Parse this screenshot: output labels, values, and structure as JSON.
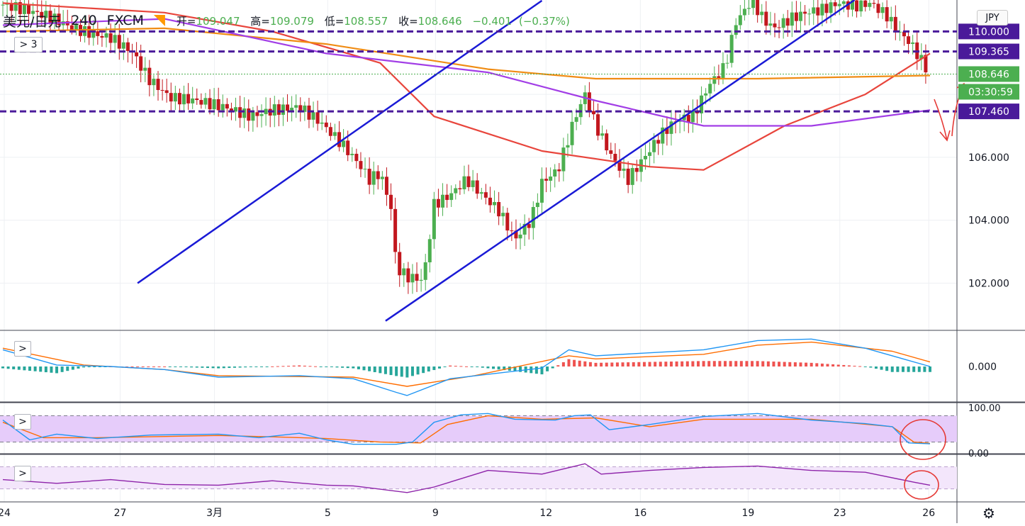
{
  "header": {
    "symbol": "美元/日元",
    "timeframe": "240",
    "source": "FXCM",
    "open_label": "开=",
    "open": "109.047",
    "high_label": "高=",
    "high": "109.079",
    "low_label": "低=",
    "low": "108.557",
    "close_label": "收=",
    "close": "108.646",
    "change": "−0.401",
    "change_pct": "(−0.37%)",
    "legend_button": "3"
  },
  "currency_badge": "JPY",
  "colors": {
    "up": "#4caf50",
    "down": "#c2171e",
    "ma_red": "#e8453c",
    "ma_orange": "#f08c14",
    "ma_purple": "#a23ee6",
    "channel": "#1a1ad6",
    "dash": "#4a1a9a",
    "macd_blue": "#2196f3",
    "macd_orange": "#ff6d00",
    "rsi_band": "#e6ccfa"
  },
  "price_labels": [
    {
      "text": "110.000",
      "bg": "#4a1a9a"
    },
    {
      "text": "109.365",
      "bg": "#4a1a9a"
    },
    {
      "text": "108.646",
      "bg": "#4caf50"
    },
    {
      "text": "03:30:59",
      "bg": "#4caf50"
    },
    {
      "text": "107.460",
      "bg": "#4a1a9a"
    }
  ],
  "chart_data": {
    "type": "candlestick",
    "y_ticks": [
      "102.000",
      "104.000",
      "106.000"
    ],
    "ylim": [
      100.5,
      111.0
    ],
    "x_tick_labels": [
      "24",
      "27",
      "3月",
      "5",
      "9",
      "12",
      "16",
      "19",
      "23",
      "26"
    ],
    "last_price": 108.646,
    "horizontal_levels": [
      110.0,
      109.365,
      107.46
    ],
    "close_path": [
      [
        0,
        110.85
      ],
      [
        8,
        110.7
      ],
      [
        18,
        110.45
      ],
      [
        26,
        110.1
      ],
      [
        34,
        109.9
      ],
      [
        40,
        109.8
      ],
      [
        48,
        109.35
      ],
      [
        54,
        108.5
      ],
      [
        62,
        107.9
      ],
      [
        72,
        107.8
      ],
      [
        82,
        107.6
      ],
      [
        92,
        107.3
      ],
      [
        100,
        107.5
      ],
      [
        110,
        107.6
      ],
      [
        118,
        107.1
      ],
      [
        126,
        106.4
      ],
      [
        132,
        105.8
      ],
      [
        136,
        105.3
      ],
      [
        140,
        105.5
      ],
      [
        144,
        104.4
      ],
      [
        146,
        102.5
      ],
      [
        150,
        102.2
      ],
      [
        156,
        102.1
      ],
      [
        160,
        104.5
      ],
      [
        166,
        104.8
      ],
      [
        172,
        105.3
      ],
      [
        178,
        104.8
      ],
      [
        184,
        104.3
      ],
      [
        190,
        103.4
      ],
      [
        196,
        104.0
      ],
      [
        200,
        105.2
      ],
      [
        206,
        105.6
      ],
      [
        212,
        107.2
      ],
      [
        216,
        108.0
      ],
      [
        220,
        107.0
      ],
      [
        226,
        106.0
      ],
      [
        232,
        105.3
      ],
      [
        238,
        106.0
      ],
      [
        244,
        106.7
      ],
      [
        250,
        107.2
      ],
      [
        256,
        107.3
      ],
      [
        262,
        108.3
      ],
      [
        268,
        108.9
      ],
      [
        272,
        110.3
      ],
      [
        278,
        111.0
      ],
      [
        282,
        110.4
      ],
      [
        286,
        110.1
      ],
      [
        292,
        110.4
      ],
      [
        298,
        110.6
      ],
      [
        304,
        110.7
      ],
      [
        310,
        110.9
      ],
      [
        316,
        110.8
      ],
      [
        322,
        110.9
      ],
      [
        328,
        110.5
      ],
      [
        332,
        110.0
      ],
      [
        336,
        109.7
      ],
      [
        340,
        109.2
      ],
      [
        344,
        108.6
      ]
    ],
    "moving_averages": [
      {
        "color": "#e8453c",
        "points": [
          [
            0,
            110.9
          ],
          [
            60,
            110.6
          ],
          [
            100,
            110.0
          ],
          [
            140,
            109.0
          ],
          [
            160,
            107.3
          ],
          [
            200,
            106.2
          ],
          [
            240,
            105.7
          ],
          [
            260,
            105.6
          ],
          [
            290,
            107.0
          ],
          [
            320,
            108.0
          ],
          [
            344,
            109.3
          ]
        ]
      },
      {
        "color": "#f08c14",
        "points": [
          [
            0,
            110.0
          ],
          [
            60,
            110.1
          ],
          [
            120,
            109.6
          ],
          [
            180,
            108.8
          ],
          [
            220,
            108.5
          ],
          [
            280,
            108.5
          ],
          [
            344,
            108.6
          ]
        ]
      },
      {
        "color": "#a23ee6",
        "points": [
          [
            0,
            110.2
          ],
          [
            60,
            110.4
          ],
          [
            120,
            109.3
          ],
          [
            180,
            108.7
          ],
          [
            220,
            107.8
          ],
          [
            260,
            107.0
          ],
          [
            300,
            107.0
          ],
          [
            344,
            107.5
          ]
        ]
      }
    ],
    "channel_lines": [
      [
        [
          50,
          102.0
        ],
        [
          200,
          110.98
        ]
      ],
      [
        [
          142,
          100.8
        ],
        [
          316,
          111.0
        ]
      ]
    ],
    "macd": {
      "zero_label": "0.000",
      "macd_path": [
        [
          0,
          0.55
        ],
        [
          20,
          0.05
        ],
        [
          40,
          0.0
        ],
        [
          60,
          -0.1
        ],
        [
          80,
          -0.35
        ],
        [
          110,
          -0.3
        ],
        [
          130,
          -0.4
        ],
        [
          146,
          -0.85
        ],
        [
          150,
          -0.95
        ],
        [
          166,
          -0.4
        ],
        [
          200,
          -0.05
        ],
        [
          210,
          0.55
        ],
        [
          220,
          0.35
        ],
        [
          260,
          0.55
        ],
        [
          280,
          0.85
        ],
        [
          300,
          0.9
        ],
        [
          320,
          0.6
        ],
        [
          344,
          0.0
        ]
      ],
      "signal_path": [
        [
          0,
          0.6
        ],
        [
          30,
          0.05
        ],
        [
          60,
          -0.1
        ],
        [
          80,
          -0.3
        ],
        [
          130,
          -0.35
        ],
        [
          150,
          -0.65
        ],
        [
          175,
          -0.3
        ],
        [
          210,
          0.35
        ],
        [
          220,
          0.25
        ],
        [
          260,
          0.4
        ],
        [
          280,
          0.7
        ],
        [
          300,
          0.8
        ],
        [
          330,
          0.5
        ],
        [
          344,
          0.15
        ]
      ],
      "ylim": [
        -1.0,
        1.0
      ]
    },
    "rsi": {
      "top_label": "100.00",
      "bottom_label": "0.00",
      "band": [
        20,
        80
      ],
      "rsi_path": [
        [
          0,
          70
        ],
        [
          10,
          25
        ],
        [
          20,
          38
        ],
        [
          35,
          28
        ],
        [
          55,
          36
        ],
        [
          80,
          38
        ],
        [
          95,
          30
        ],
        [
          110,
          40
        ],
        [
          120,
          25
        ],
        [
          130,
          15
        ],
        [
          146,
          15
        ],
        [
          152,
          20
        ],
        [
          160,
          65
        ],
        [
          170,
          82
        ],
        [
          180,
          85
        ],
        [
          190,
          72
        ],
        [
          205,
          70
        ],
        [
          212,
          80
        ],
        [
          218,
          82
        ],
        [
          225,
          48
        ],
        [
          240,
          60
        ],
        [
          260,
          78
        ],
        [
          280,
          85
        ],
        [
          300,
          70
        ],
        [
          320,
          62
        ],
        [
          330,
          55
        ],
        [
          336,
          18
        ],
        [
          344,
          16
        ]
      ],
      "signal_path": [
        [
          0,
          65
        ],
        [
          15,
          30
        ],
        [
          35,
          30
        ],
        [
          80,
          35
        ],
        [
          100,
          32
        ],
        [
          120,
          28
        ],
        [
          140,
          20
        ],
        [
          155,
          18
        ],
        [
          165,
          60
        ],
        [
          180,
          80
        ],
        [
          200,
          72
        ],
        [
          220,
          75
        ],
        [
          240,
          55
        ],
        [
          260,
          72
        ],
        [
          300,
          72
        ],
        [
          330,
          55
        ],
        [
          338,
          20
        ],
        [
          344,
          17
        ]
      ]
    },
    "osc4": {
      "path": [
        [
          0,
          45
        ],
        [
          20,
          35
        ],
        [
          40,
          45
        ],
        [
          60,
          32
        ],
        [
          80,
          30
        ],
        [
          100,
          42
        ],
        [
          120,
          30
        ],
        [
          130,
          28
        ],
        [
          150,
          10
        ],
        [
          160,
          25
        ],
        [
          180,
          70
        ],
        [
          200,
          60
        ],
        [
          216,
          88
        ],
        [
          222,
          60
        ],
        [
          240,
          70
        ],
        [
          260,
          78
        ],
        [
          280,
          82
        ],
        [
          300,
          70
        ],
        [
          320,
          65
        ],
        [
          338,
          38
        ],
        [
          344,
          30
        ]
      ]
    }
  }
}
